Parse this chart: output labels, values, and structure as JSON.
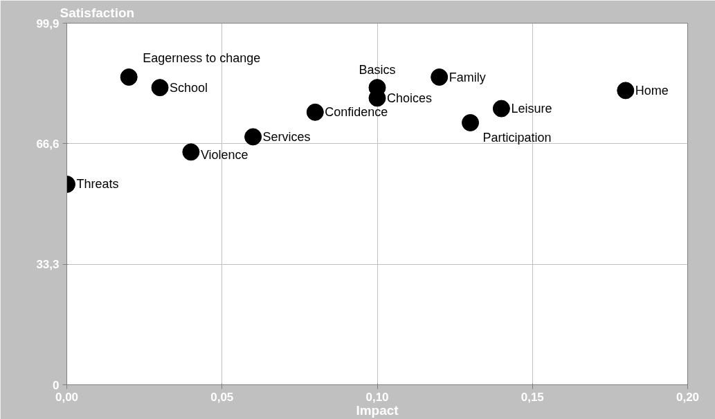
{
  "chart_data": {
    "type": "scatter",
    "xlabel": "Impact",
    "ylabel": "Satisfaction",
    "x": [
      0.0,
      0.02,
      0.03,
      0.04,
      0.06,
      0.08,
      0.1,
      0.1,
      0.12,
      0.13,
      0.14,
      0.18
    ],
    "values": [
      55.4,
      85.0,
      82.1,
      64.3,
      68.5,
      75.3,
      82.1,
      79.2,
      85.0,
      72.4,
      76.3,
      81.3
    ],
    "color": "#000000",
    "marker": "circle",
    "grid": true,
    "xlim": [
      0,
      0.2
    ],
    "xticks": [
      {
        "value": 0,
        "label": "0,00"
      },
      {
        "value": 0.05,
        "label": "0,05"
      },
      {
        "value": 0.1,
        "label": "0,10"
      },
      {
        "value": 0.15,
        "label": "0,15"
      },
      {
        "value": 0.2,
        "label": "0,20"
      }
    ],
    "ylim": [
      0,
      99.9
    ],
    "yticks": [
      0,
      {
        "value": 33.3,
        "label": "33,3"
      },
      {
        "value": 66.6,
        "label": "66,6"
      },
      {
        "value": 99.9,
        "label": "99,9"
      }
    ],
    "annotations": [
      {
        "text": "Threats",
        "x": 0.0,
        "y": 55.4
      },
      {
        "text": "Eagerness to change",
        "x": 0.02,
        "y": 85.0
      },
      {
        "text": "School",
        "x": 0.03,
        "y": 82.1
      },
      {
        "text": "Violence",
        "x": 0.04,
        "y": 64.3
      },
      {
        "text": "Services",
        "x": 0.06,
        "y": 68.5
      },
      {
        "text": "Confidence",
        "x": 0.08,
        "y": 75.3
      },
      {
        "text": "Basics",
        "x": 0.1,
        "y": 82.1
      },
      {
        "text": "Choices",
        "x": 0.1,
        "y": 79.2
      },
      {
        "text": "Family",
        "x": 0.12,
        "y": 85.0
      },
      {
        "text": "Participation",
        "x": 0.13,
        "y": 72.4
      },
      {
        "text": "Leisure",
        "x": 0.14,
        "y": 76.3
      },
      {
        "text": "Home",
        "x": 0.18,
        "y": 81.3
      }
    ]
  }
}
